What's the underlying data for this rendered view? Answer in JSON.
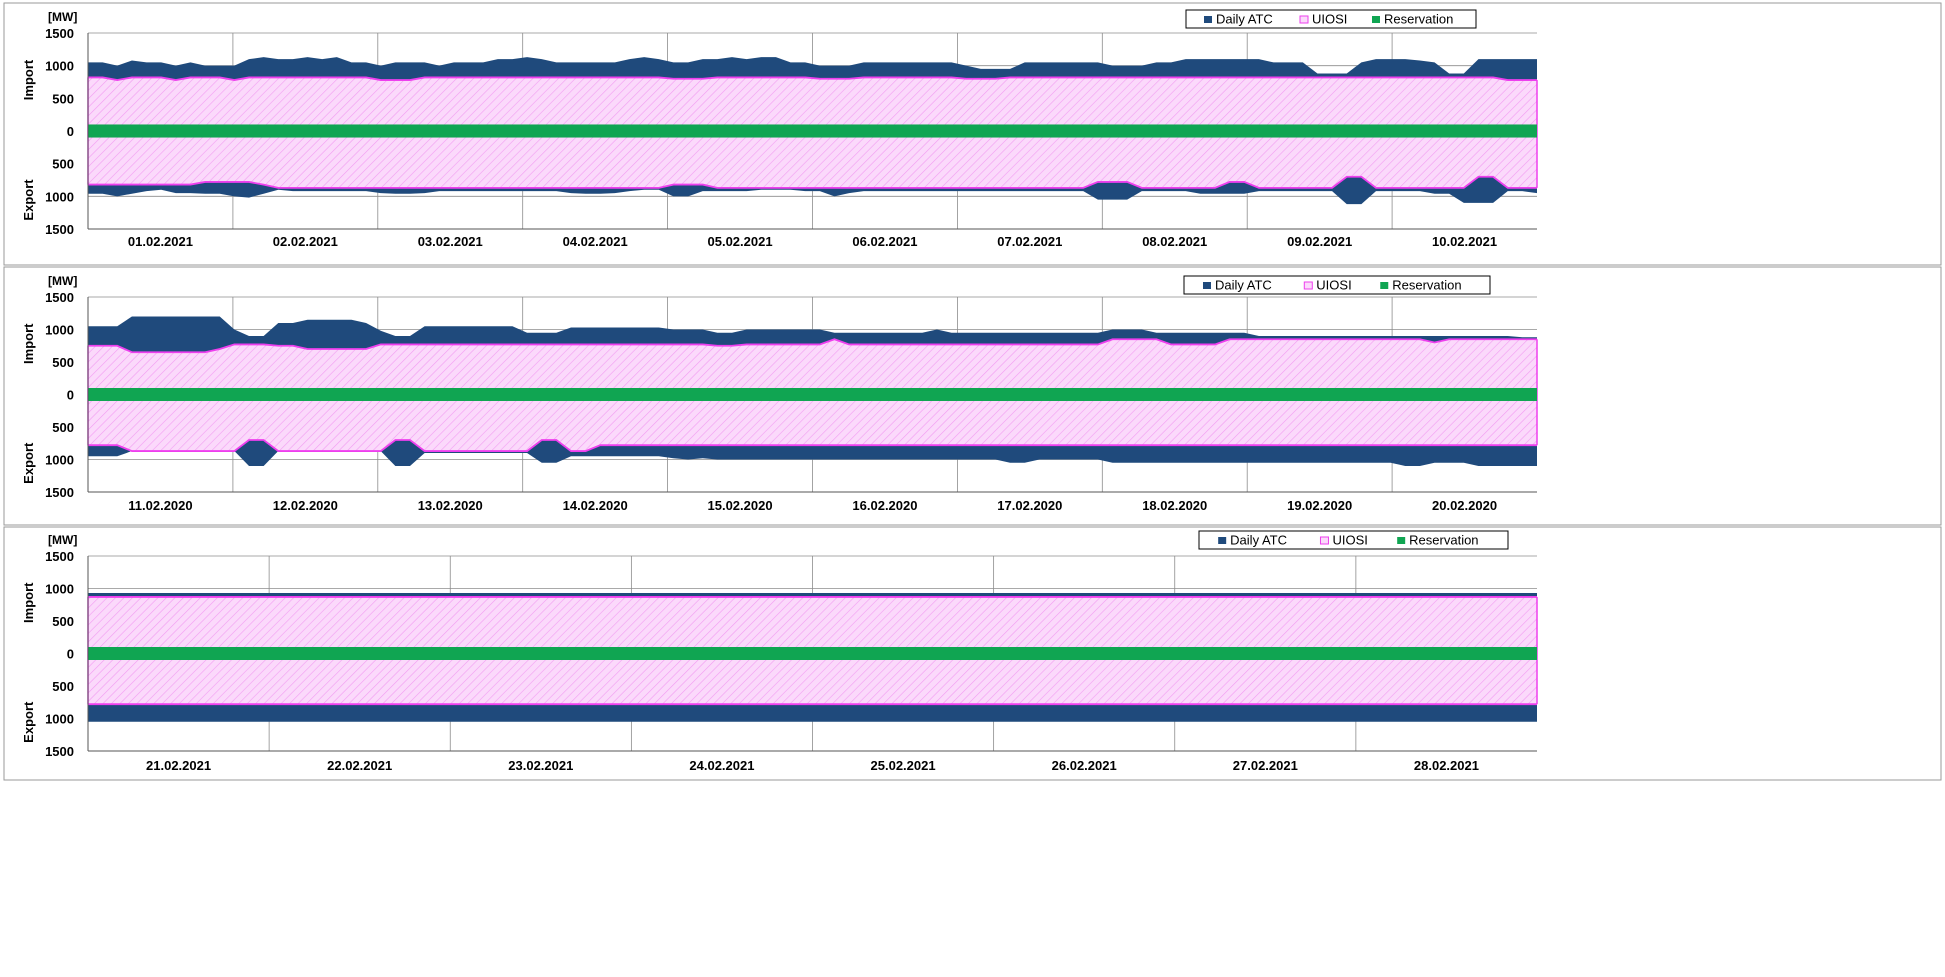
{
  "legend": {
    "daily_atc": "Daily ATC",
    "uiosi": "UIOSI",
    "reservation": "Reservation"
  },
  "colors": {
    "daily_atc": "#1f4a7c",
    "uiosi_stroke": "#ee3fee",
    "uiosi_fill": "#fbd9fb",
    "reservation": "#10a552",
    "grid": "#8c8c8c",
    "frame": "#9a9a9a"
  },
  "chart_data": [
    {
      "type": "area",
      "unit_label": "[MW]",
      "ylabel_top": "Import",
      "ylabel_bottom": "Export",
      "ytick_labels": [
        "1500",
        "1000",
        "500",
        "0",
        "500",
        "1000",
        "1500"
      ],
      "ylim": [
        -1500,
        1500
      ],
      "grid": true,
      "legend_position": "top-right",
      "x_labels": [
        "01.02.2021",
        "02.02.2021",
        "03.02.2021",
        "04.02.2021",
        "05.02.2021",
        "06.02.2021",
        "07.02.2021",
        "08.02.2021",
        "09.02.2021",
        "10.02.2021"
      ],
      "reservation": [
        -100,
        100
      ],
      "uiosi_import": [
        820,
        820,
        780,
        820,
        820,
        820,
        780,
        820,
        820,
        820,
        780,
        820,
        820,
        820,
        820,
        820,
        820,
        820,
        820,
        820,
        780,
        780,
        780,
        820,
        820,
        820,
        820,
        820,
        820,
        820,
        820,
        820,
        820,
        820,
        820,
        820,
        820,
        820,
        820,
        820,
        800,
        800,
        800,
        820,
        820,
        820,
        820,
        820,
        820,
        820,
        800,
        800,
        800,
        820,
        820,
        820,
        820,
        820,
        820,
        820,
        800,
        800,
        800,
        820,
        820,
        820,
        820,
        820,
        820,
        820,
        820,
        820,
        820,
        820,
        820,
        820,
        820,
        820,
        820,
        820,
        820,
        820,
        820,
        820,
        820,
        820,
        820,
        820,
        820,
        820,
        820,
        820,
        820,
        820,
        820,
        820,
        820,
        780,
        780,
        780
      ],
      "atc_import": [
        1050,
        1050,
        1000,
        1080,
        1050,
        1050,
        1000,
        1050,
        1000,
        1000,
        1000,
        1100,
        1130,
        1100,
        1100,
        1130,
        1100,
        1130,
        1050,
        1050,
        1000,
        1050,
        1050,
        1050,
        1000,
        1050,
        1050,
        1050,
        1100,
        1100,
        1130,
        1100,
        1050,
        1050,
        1050,
        1050,
        1050,
        1100,
        1130,
        1100,
        1050,
        1050,
        1100,
        1100,
        1130,
        1100,
        1130,
        1130,
        1050,
        1050,
        1000,
        1000,
        1000,
        1050,
        1050,
        1050,
        1050,
        1050,
        1050,
        1050,
        1000,
        950,
        950,
        950,
        1050,
        1050,
        1050,
        1050,
        1050,
        1050,
        1000,
        1000,
        1000,
        1050,
        1050,
        1100,
        1100,
        1100,
        1100,
        1100,
        1100,
        1050,
        1050,
        1050,
        880,
        880,
        880,
        1050,
        1100,
        1100,
        1100,
        1080,
        1050,
        880,
        880,
        1100,
        1100,
        1100,
        1100,
        1100
      ],
      "uiosi_export": [
        -820,
        -820,
        -820,
        -820,
        -820,
        -820,
        -820,
        -820,
        -780,
        -780,
        -780,
        -780,
        -820,
        -870,
        -870,
        -870,
        -870,
        -870,
        -870,
        -870,
        -870,
        -870,
        -870,
        -870,
        -870,
        -870,
        -870,
        -870,
        -870,
        -870,
        -870,
        -870,
        -870,
        -870,
        -870,
        -870,
        -870,
        -870,
        -870,
        -870,
        -820,
        -820,
        -820,
        -870,
        -870,
        -870,
        -870,
        -870,
        -870,
        -870,
        -870,
        -870,
        -870,
        -870,
        -870,
        -870,
        -870,
        -870,
        -870,
        -870,
        -870,
        -870,
        -870,
        -870,
        -870,
        -870,
        -870,
        -870,
        -870,
        -780,
        -780,
        -780,
        -870,
        -870,
        -870,
        -870,
        -870,
        -870,
        -780,
        -780,
        -870,
        -870,
        -870,
        -870,
        -870,
        -870,
        -700,
        -700,
        -870,
        -870,
        -870,
        -870,
        -870,
        -870,
        -870,
        -700,
        -700,
        -870,
        -870,
        -870
      ],
      "atc_export": [
        -960,
        -960,
        -1000,
        -960,
        -920,
        -900,
        -950,
        -950,
        -960,
        -960,
        -1000,
        -1020,
        -960,
        -900,
        -920,
        -920,
        -920,
        -920,
        -920,
        -920,
        -950,
        -960,
        -960,
        -950,
        -920,
        -920,
        -920,
        -920,
        -920,
        -920,
        -920,
        -920,
        -920,
        -950,
        -960,
        -960,
        -950,
        -920,
        -900,
        -900,
        -1000,
        -1000,
        -920,
        -920,
        -920,
        -920,
        -900,
        -900,
        -900,
        -920,
        -920,
        -1000,
        -950,
        -920,
        -920,
        -920,
        -920,
        -920,
        -920,
        -920,
        -920,
        -920,
        -920,
        -920,
        -920,
        -920,
        -920,
        -920,
        -920,
        -1050,
        -1050,
        -1050,
        -920,
        -920,
        -920,
        -920,
        -960,
        -960,
        -960,
        -960,
        -920,
        -920,
        -920,
        -920,
        -920,
        -920,
        -1120,
        -1120,
        -920,
        -920,
        -920,
        -920,
        -960,
        -960,
        -1100,
        -1100,
        -1100,
        -920,
        -920,
        -950
      ]
    },
    {
      "type": "area",
      "unit_label": "[MW]",
      "ylabel_top": "Import",
      "ylabel_bottom": "Export",
      "ytick_labels": [
        "1500",
        "1000",
        "500",
        "0",
        "500",
        "1000",
        "1500"
      ],
      "ylim": [
        -1500,
        1500
      ],
      "grid": true,
      "legend_position": "top-right",
      "x_labels": [
        "11.02.2020",
        "12.02.2020",
        "13.02.2020",
        "14.02.2020",
        "15.02.2020",
        "16.02.2020",
        "17.02.2020",
        "18.02.2020",
        "19.02.2020",
        "20.02.2020"
      ],
      "reservation": [
        -100,
        100
      ],
      "uiosi_import": [
        750,
        750,
        750,
        650,
        650,
        650,
        650,
        650,
        650,
        700,
        770,
        770,
        770,
        750,
        750,
        700,
        700,
        700,
        700,
        700,
        770,
        770,
        770,
        770,
        770,
        770,
        770,
        770,
        770,
        770,
        770,
        770,
        770,
        770,
        770,
        770,
        770,
        770,
        770,
        770,
        770,
        770,
        770,
        750,
        750,
        770,
        770,
        770,
        770,
        770,
        770,
        850,
        770,
        770,
        770,
        770,
        770,
        770,
        770,
        770,
        770,
        770,
        770,
        770,
        770,
        770,
        770,
        770,
        770,
        770,
        850,
        850,
        850,
        850,
        770,
        770,
        770,
        770,
        850,
        850,
        850,
        850,
        850,
        850,
        850,
        850,
        850,
        850,
        850,
        850,
        850,
        850,
        800,
        850,
        850,
        850,
        850,
        850,
        850,
        850
      ],
      "atc_import": [
        1050,
        1050,
        1050,
        1200,
        1200,
        1200,
        1200,
        1200,
        1200,
        1200,
        1000,
        900,
        900,
        1100,
        1100,
        1150,
        1150,
        1150,
        1150,
        1100,
        980,
        900,
        900,
        1050,
        1050,
        1050,
        1050,
        1050,
        1050,
        1050,
        950,
        950,
        950,
        1030,
        1030,
        1030,
        1030,
        1030,
        1030,
        1030,
        1000,
        1000,
        1000,
        950,
        950,
        1000,
        1000,
        1000,
        1000,
        1000,
        1000,
        950,
        950,
        950,
        950,
        950,
        950,
        950,
        1000,
        950,
        950,
        950,
        950,
        950,
        950,
        950,
        950,
        950,
        950,
        950,
        1000,
        1000,
        1000,
        950,
        950,
        950,
        950,
        950,
        950,
        950,
        900,
        900,
        900,
        900,
        900,
        900,
        900,
        900,
        900,
        900,
        900,
        900,
        900,
        900,
        900,
        900,
        900,
        900,
        880,
        880
      ],
      "uiosi_export": [
        -780,
        -780,
        -780,
        -870,
        -870,
        -870,
        -870,
        -870,
        -870,
        -870,
        -870,
        -700,
        -700,
        -870,
        -870,
        -870,
        -870,
        -870,
        -870,
        -870,
        -870,
        -700,
        -700,
        -870,
        -870,
        -870,
        -870,
        -870,
        -870,
        -870,
        -870,
        -700,
        -700,
        -870,
        -870,
        -780,
        -780,
        -780,
        -780,
        -780,
        -780,
        -780,
        -780,
        -780,
        -780,
        -780,
        -780,
        -780,
        -780,
        -780,
        -780,
        -780,
        -780,
        -780,
        -780,
        -780,
        -780,
        -780,
        -780,
        -780,
        -780,
        -780,
        -780,
        -780,
        -780,
        -780,
        -780,
        -780,
        -780,
        -780,
        -780,
        -780,
        -780,
        -780,
        -780,
        -780,
        -780,
        -780,
        -780,
        -780,
        -780,
        -780,
        -780,
        -780,
        -780,
        -780,
        -780,
        -780,
        -780,
        -780,
        -780,
        -780,
        -780,
        -780,
        -780,
        -780,
        -780,
        -780,
        -780,
        -780
      ],
      "atc_export": [
        -950,
        -950,
        -950,
        -870,
        -870,
        -870,
        -870,
        -870,
        -870,
        -870,
        -870,
        -1100,
        -1100,
        -870,
        -870,
        -870,
        -870,
        -870,
        -870,
        -870,
        -870,
        -1100,
        -1100,
        -900,
        -900,
        -900,
        -900,
        -900,
        -900,
        -900,
        -900,
        -1050,
        -1050,
        -950,
        -950,
        -950,
        -950,
        -950,
        -950,
        -950,
        -980,
        -1000,
        -980,
        -1000,
        -1000,
        -1000,
        -1000,
        -1000,
        -1000,
        -1000,
        -1000,
        -1000,
        -1000,
        -1000,
        -1000,
        -1000,
        -1000,
        -1000,
        -1000,
        -1000,
        -1000,
        -1000,
        -1000,
        -1050,
        -1050,
        -1000,
        -1000,
        -1000,
        -1000,
        -1000,
        -1050,
        -1050,
        -1050,
        -1050,
        -1050,
        -1050,
        -1050,
        -1050,
        -1050,
        -1050,
        -1050,
        -1050,
        -1050,
        -1050,
        -1050,
        -1050,
        -1050,
        -1050,
        -1050,
        -1050,
        -1100,
        -1100,
        -1050,
        -1050,
        -1050,
        -1100,
        -1100,
        -1100,
        -1100,
        -1100
      ]
    },
    {
      "type": "area",
      "unit_label": "[MW]",
      "ylabel_top": "Import",
      "ylabel_bottom": "Export",
      "ytick_labels": [
        "1500",
        "1000",
        "500",
        "0",
        "500",
        "1000",
        "1500"
      ],
      "ylim": [
        -1500,
        1500
      ],
      "grid": true,
      "legend_position": "top-right",
      "x_labels": [
        "21.02.2021",
        "22.02.2021",
        "23.02.2021",
        "24.02.2021",
        "25.02.2021",
        "26.02.2021",
        "27.02.2021",
        "28.02.2021"
      ],
      "reservation": [
        -100,
        100
      ],
      "uiosi_import": [
        870,
        870,
        870,
        870,
        870,
        870,
        870,
        870,
        870,
        870,
        870,
        870,
        870,
        870,
        870,
        870,
        870,
        870,
        870,
        870,
        870,
        870,
        870,
        870,
        870,
        870,
        870,
        870,
        870,
        870,
        870,
        870,
        870,
        870,
        870,
        870,
        870,
        870,
        870,
        870,
        870,
        870,
        870,
        870,
        870,
        870,
        870,
        870,
        870,
        870,
        870,
        870,
        870,
        870,
        870,
        870,
        870,
        870,
        870,
        870,
        870,
        870,
        870,
        870,
        870,
        870,
        870,
        870,
        870,
        870,
        870,
        870,
        870,
        870,
        870,
        870,
        870,
        870,
        870,
        870
      ],
      "atc_import": [
        930,
        930,
        930,
        930,
        930,
        930,
        930,
        930,
        930,
        930,
        930,
        930,
        930,
        930,
        930,
        930,
        930,
        930,
        930,
        930,
        930,
        930,
        930,
        930,
        930,
        930,
        930,
        930,
        930,
        930,
        930,
        930,
        930,
        930,
        930,
        930,
        930,
        930,
        930,
        930,
        930,
        930,
        930,
        930,
        930,
        930,
        930,
        930,
        930,
        930,
        930,
        930,
        930,
        930,
        930,
        930,
        930,
        930,
        930,
        930,
        930,
        930,
        930,
        930,
        930,
        930,
        930,
        930,
        930,
        930,
        930,
        930,
        930,
        930,
        930,
        930,
        930,
        930,
        930,
        930
      ],
      "uiosi_export": [
        -780,
        -780,
        -780,
        -780,
        -780,
        -780,
        -780,
        -780,
        -780,
        -780,
        -780,
        -780,
        -780,
        -780,
        -780,
        -780,
        -780,
        -780,
        -780,
        -780,
        -780,
        -780,
        -780,
        -780,
        -780,
        -780,
        -780,
        -780,
        -780,
        -780,
        -780,
        -780,
        -780,
        -780,
        -780,
        -780,
        -780,
        -780,
        -780,
        -780,
        -780,
        -780,
        -780,
        -780,
        -780,
        -780,
        -780,
        -780,
        -780,
        -780,
        -780,
        -780,
        -780,
        -780,
        -780,
        -780,
        -780,
        -780,
        -780,
        -780,
        -780,
        -780,
        -780,
        -780,
        -780,
        -780,
        -780,
        -780,
        -780,
        -780,
        -780,
        -780,
        -780,
        -780,
        -780,
        -780,
        -780,
        -780,
        -780,
        -780
      ],
      "atc_export": [
        -1050,
        -1050,
        -1050,
        -1050,
        -1050,
        -1050,
        -1050,
        -1050,
        -1050,
        -1050,
        -1050,
        -1050,
        -1050,
        -1050,
        -1050,
        -1050,
        -1050,
        -1050,
        -1050,
        -1050,
        -1050,
        -1050,
        -1050,
        -1050,
        -1050,
        -1050,
        -1050,
        -1050,
        -1050,
        -1050,
        -1050,
        -1050,
        -1050,
        -1050,
        -1050,
        -1050,
        -1050,
        -1050,
        -1050,
        -1050,
        -1050,
        -1050,
        -1050,
        -1050,
        -1050,
        -1050,
        -1050,
        -1050,
        -1050,
        -1050,
        -1050,
        -1050,
        -1050,
        -1050,
        -1050,
        -1050,
        -1050,
        -1050,
        -1050,
        -1050,
        -1050,
        -1050,
        -1050,
        -1050,
        -1050,
        -1050,
        -1050,
        -1050,
        -1050,
        -1050,
        -1050,
        -1050,
        -1050,
        -1050,
        -1050,
        -1050,
        -1050,
        -1050,
        -1050,
        -1050
      ]
    }
  ]
}
